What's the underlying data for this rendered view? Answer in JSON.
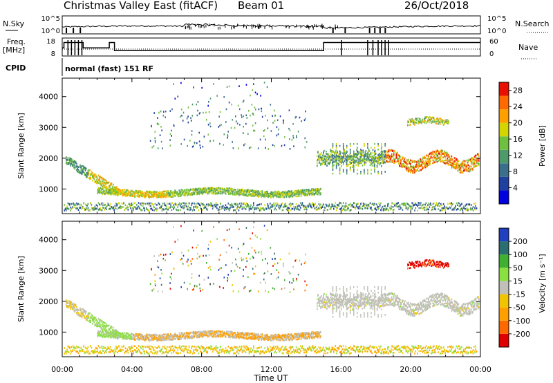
{
  "header": {
    "title": "Christmas Valley East (fitACF)",
    "beam": "Beam 01",
    "date": "26/Oct/2018"
  },
  "colors": {
    "power": [
      "#0000e0",
      "#2040a0",
      "#3a6e8a",
      "#4f9a6a",
      "#70c040",
      "#d4d400",
      "#ffa000",
      "#ff6a00",
      "#e81000"
    ],
    "velocity": [
      "#e00000",
      "#ff6a00",
      "#ff9f00",
      "#f0c400",
      "#c0c0b8",
      "#8ae040",
      "#40b030",
      "#2a6e70",
      "#2040c0"
    ]
  },
  "chart_data": [
    {
      "type": "line",
      "name": "sky-noise-panel",
      "left_label": "N.Sky",
      "right_label": "N.Search",
      "left_ticks": [
        "10^5",
        "10^0"
      ],
      "right_ticks": [
        "10^5",
        "10^0"
      ]
    },
    {
      "type": "line",
      "name": "frequency-panel",
      "left_label": "Freq.",
      "left_unit": "[MHz]",
      "right_label": "Nave",
      "left_ticks": [
        "18",
        "8"
      ],
      "right_ticks": [
        "60",
        "0"
      ],
      "ylim": [
        8,
        18
      ],
      "series": [
        {
          "x": [
            0,
            0.1,
            0.1,
            1.2,
            1.2,
            2.7,
            2.7,
            3.0,
            3.0,
            15.0,
            15.0,
            16.0,
            16.0,
            24.0
          ],
          "y": [
            12.5,
            12.5,
            15.5,
            15.5,
            12.5,
            12.5,
            15.5,
            15.5,
            11.0,
            11.0,
            15.5,
            15.5,
            15.5,
            15.5
          ]
        }
      ]
    },
    {
      "type": "text",
      "name": "cpid-panel",
      "label": "CPID",
      "program": "normal (fast) 151 RF"
    },
    {
      "type": "heatmap",
      "name": "power-panel",
      "ylabel": "Slant Range [km]",
      "y_ticks": [
        "1000",
        "2000",
        "3000",
        "4000"
      ],
      "ylim": [
        200,
        4600
      ],
      "xlim": [
        0,
        24
      ],
      "colorbar_label": "Power [dB]",
      "colorbar_ticks": [
        "4",
        "8",
        "12",
        "16",
        "20",
        "24",
        "28"
      ],
      "colorbar_range": [
        0,
        30
      ]
    },
    {
      "type": "heatmap",
      "name": "velocity-panel",
      "ylabel": "Slant Range [km]",
      "y_ticks": [
        "1000",
        "2000",
        "3000",
        "4000"
      ],
      "ylim": [
        200,
        4600
      ],
      "xlim": [
        0,
        24
      ],
      "colorbar_label": "Velocity [m s⁻¹]",
      "colorbar_ticks": [
        "-200",
        "-100",
        "-50",
        "-15",
        "15",
        "50",
        "100",
        "200"
      ]
    }
  ],
  "x_axis": {
    "label": "Time UT",
    "ticks": [
      "00:00",
      "04:00",
      "08:00",
      "12:00",
      "16:00",
      "20:00",
      "00:00"
    ]
  }
}
